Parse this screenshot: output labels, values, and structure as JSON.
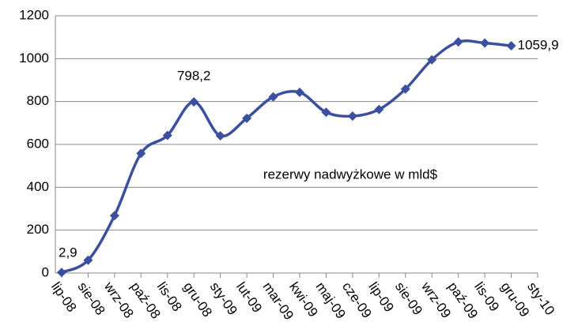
{
  "chart_data": {
    "type": "line",
    "annotation": "rezerwy nadwyżkowe w mld$",
    "categories": [
      "lip-08",
      "sie-08",
      "wrz-08",
      "paź-08",
      "lis-08",
      "gru-08",
      "sty-09",
      "lut-09",
      "mar-09",
      "kwi-09",
      "maj-09",
      "cze-09",
      "lip-09",
      "sie-09",
      "wrz-09",
      "paź-09",
      "lis-09",
      "gru-09",
      "sty-10"
    ],
    "series": [
      {
        "name": "rezerwy nadwyżkowe",
        "color": "#3a4fa0",
        "values": [
          2.9,
          60,
          268,
          558,
          642,
          798.2,
          640,
          722,
          822,
          843,
          750,
          732,
          763,
          858,
          995,
          1078,
          1073,
          1059.9,
          null
        ],
        "value_labels": [
          "2,9",
          null,
          null,
          null,
          null,
          "798,2",
          null,
          null,
          null,
          null,
          null,
          null,
          null,
          null,
          null,
          null,
          null,
          "1059,9",
          null
        ]
      }
    ],
    "ylim": [
      0,
      1200
    ],
    "yticks": [
      0,
      200,
      400,
      600,
      800,
      1000,
      1200
    ],
    "grid": true
  }
}
